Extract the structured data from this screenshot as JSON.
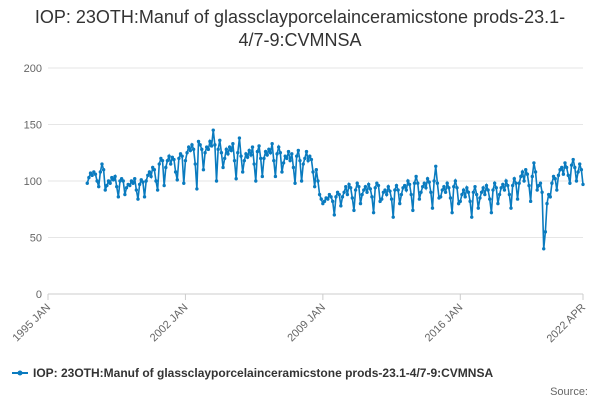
{
  "chart_data": {
    "type": "line",
    "title": "IOP: 23OTH:Manuf of glassclayporcelainceramicstone prods-23.1-4/7-9:CVMNSA",
    "source_label": "Source:",
    "xlim": [
      "1995-01",
      "2022-04"
    ],
    "xticks": [
      {
        "value": "1995-01",
        "label": "1995 JAN"
      },
      {
        "value": "2002-01",
        "label": "2002 JAN"
      },
      {
        "value": "2009-01",
        "label": "2009 JAN"
      },
      {
        "value": "2016-01",
        "label": "2016 JAN"
      },
      {
        "value": "2022-04",
        "label": "2022 APR"
      }
    ],
    "ylim": [
      0,
      200
    ],
    "yticks": [
      0,
      50,
      100,
      150,
      200
    ],
    "grid": true,
    "x": [
      "1997-01",
      "1997-02",
      "1997-03",
      "1997-04",
      "1997-05",
      "1997-06",
      "1997-07",
      "1997-08",
      "1997-09",
      "1997-10",
      "1997-11",
      "1997-12",
      "1998-01",
      "1998-02",
      "1998-03",
      "1998-04",
      "1998-05",
      "1998-06",
      "1998-07",
      "1998-08",
      "1998-09",
      "1998-10",
      "1998-11",
      "1998-12",
      "1999-01",
      "1999-02",
      "1999-03",
      "1999-04",
      "1999-05",
      "1999-06",
      "1999-07",
      "1999-08",
      "1999-09",
      "1999-10",
      "1999-11",
      "1999-12",
      "2000-01",
      "2000-02",
      "2000-03",
      "2000-04",
      "2000-05",
      "2000-06",
      "2000-07",
      "2000-08",
      "2000-09",
      "2000-10",
      "2000-11",
      "2000-12",
      "2001-01",
      "2001-02",
      "2001-03",
      "2001-04",
      "2001-05",
      "2001-06",
      "2001-07",
      "2001-08",
      "2001-09",
      "2001-10",
      "2001-11",
      "2001-12",
      "2002-01",
      "2002-02",
      "2002-03",
      "2002-04",
      "2002-05",
      "2002-06",
      "2002-07",
      "2002-08",
      "2002-09",
      "2002-10",
      "2002-11",
      "2002-12",
      "2003-01",
      "2003-02",
      "2003-03",
      "2003-04",
      "2003-05",
      "2003-06",
      "2003-07",
      "2003-08",
      "2003-09",
      "2003-10",
      "2003-11",
      "2003-12",
      "2004-01",
      "2004-02",
      "2004-03",
      "2004-04",
      "2004-05",
      "2004-06",
      "2004-07",
      "2004-08",
      "2004-09",
      "2004-10",
      "2004-11",
      "2004-12",
      "2005-01",
      "2005-02",
      "2005-03",
      "2005-04",
      "2005-05",
      "2005-06",
      "2005-07",
      "2005-08",
      "2005-09",
      "2005-10",
      "2005-11",
      "2005-12",
      "2006-01",
      "2006-02",
      "2006-03",
      "2006-04",
      "2006-05",
      "2006-06",
      "2006-07",
      "2006-08",
      "2006-09",
      "2006-10",
      "2006-11",
      "2006-12",
      "2007-01",
      "2007-02",
      "2007-03",
      "2007-04",
      "2007-05",
      "2007-06",
      "2007-07",
      "2007-08",
      "2007-09",
      "2007-10",
      "2007-11",
      "2007-12",
      "2008-01",
      "2008-02",
      "2008-03",
      "2008-04",
      "2008-05",
      "2008-06",
      "2008-07",
      "2008-08",
      "2008-09",
      "2008-10",
      "2008-11",
      "2008-12",
      "2009-01",
      "2009-02",
      "2009-03",
      "2009-04",
      "2009-05",
      "2009-06",
      "2009-07",
      "2009-08",
      "2009-09",
      "2009-10",
      "2009-11",
      "2009-12",
      "2010-01",
      "2010-02",
      "2010-03",
      "2010-04",
      "2010-05",
      "2010-06",
      "2010-07",
      "2010-08",
      "2010-09",
      "2010-10",
      "2010-11",
      "2010-12",
      "2011-01",
      "2011-02",
      "2011-03",
      "2011-04",
      "2011-05",
      "2011-06",
      "2011-07",
      "2011-08",
      "2011-09",
      "2011-10",
      "2011-11",
      "2011-12",
      "2012-01",
      "2012-02",
      "2012-03",
      "2012-04",
      "2012-05",
      "2012-06",
      "2012-07",
      "2012-08",
      "2012-09",
      "2012-10",
      "2012-11",
      "2012-12",
      "2013-01",
      "2013-02",
      "2013-03",
      "2013-04",
      "2013-05",
      "2013-06",
      "2013-07",
      "2013-08",
      "2013-09",
      "2013-10",
      "2013-11",
      "2013-12",
      "2014-01",
      "2014-02",
      "2014-03",
      "2014-04",
      "2014-05",
      "2014-06",
      "2014-07",
      "2014-08",
      "2014-09",
      "2014-10",
      "2014-11",
      "2014-12",
      "2015-01",
      "2015-02",
      "2015-03",
      "2015-04",
      "2015-05",
      "2015-06",
      "2015-07",
      "2015-08",
      "2015-09",
      "2015-10",
      "2015-11",
      "2015-12",
      "2016-01",
      "2016-02",
      "2016-03",
      "2016-04",
      "2016-05",
      "2016-06",
      "2016-07",
      "2016-08",
      "2016-09",
      "2016-10",
      "2016-11",
      "2016-12",
      "2017-01",
      "2017-02",
      "2017-03",
      "2017-04",
      "2017-05",
      "2017-06",
      "2017-07",
      "2017-08",
      "2017-09",
      "2017-10",
      "2017-11",
      "2017-12",
      "2018-01",
      "2018-02",
      "2018-03",
      "2018-04",
      "2018-05",
      "2018-06",
      "2018-07",
      "2018-08",
      "2018-09",
      "2018-10",
      "2018-11",
      "2018-12",
      "2019-01",
      "2019-02",
      "2019-03",
      "2019-04",
      "2019-05",
      "2019-06",
      "2019-07",
      "2019-08",
      "2019-09",
      "2019-10",
      "2019-11",
      "2019-12",
      "2020-01",
      "2020-02",
      "2020-03",
      "2020-04",
      "2020-05",
      "2020-06",
      "2020-07",
      "2020-08",
      "2020-09",
      "2020-10",
      "2020-11",
      "2020-12",
      "2021-01",
      "2021-02",
      "2021-03",
      "2021-04",
      "2021-05",
      "2021-06",
      "2021-07",
      "2021-08",
      "2021-09",
      "2021-10",
      "2021-11",
      "2021-12",
      "2022-01",
      "2022-02",
      "2022-03",
      "2022-04"
    ],
    "series": [
      {
        "name": "IOP: 23OTH:Manuf of glassclayporcelainceramicstone prods-23.1-4/7-9:CVMNSA",
        "color": "#0a7bbf",
        "values": [
          98,
          103,
          107,
          105,
          108,
          106,
          100,
          95,
          108,
          115,
          110,
          92,
          96,
          100,
          98,
          103,
          101,
          104,
          95,
          86,
          100,
          102,
          100,
          88,
          94,
          97,
          96,
          100,
          98,
          102,
          92,
          84,
          97,
          101,
          99,
          86,
          100,
          105,
          108,
          104,
          112,
          110,
          100,
          92,
          115,
          120,
          118,
          96,
          112,
          118,
          122,
          115,
          121,
          119,
          108,
          101,
          120,
          124,
          122,
          98,
          118,
          125,
          130,
          127,
          132,
          128,
          115,
          93,
          135,
          132,
          128,
          110,
          125,
          130,
          128,
          135,
          131,
          145,
          132,
          100,
          128,
          136,
          125,
          112,
          120,
          128,
          124,
          130,
          127,
          133,
          118,
          102,
          125,
          138,
          122,
          108,
          118,
          124,
          121,
          127,
          123,
          130,
          115,
          100,
          126,
          131,
          120,
          104,
          120,
          126,
          123,
          128,
          125,
          133,
          118,
          104,
          124,
          130,
          125,
          108,
          116,
          122,
          120,
          126,
          118,
          124,
          112,
          98,
          122,
          127,
          118,
          100,
          115,
          120,
          126,
          118,
          122,
          119,
          108,
          95,
          110,
          100,
          88,
          84,
          80,
          82,
          85,
          84,
          88,
          86,
          82,
          70,
          86,
          90,
          88,
          78,
          86,
          90,
          95,
          88,
          97,
          94,
          85,
          74,
          92,
          98,
          95,
          80,
          88,
          92,
          95,
          90,
          97,
          93,
          86,
          72,
          94,
          98,
          96,
          82,
          84,
          90,
          92,
          88,
          95,
          91,
          84,
          68,
          92,
          96,
          92,
          80,
          88,
          94,
          96,
          92,
          100,
          97,
          88,
          74,
          98,
          104,
          98,
          84,
          90,
          95,
          98,
          94,
          102,
          99,
          90,
          76,
          100,
          113,
          98,
          85,
          86,
          92,
          95,
          90,
          98,
          94,
          85,
          72,
          95,
          100,
          94,
          80,
          82,
          88,
          92,
          86,
          94,
          90,
          82,
          68,
          90,
          95,
          88,
          76,
          85,
          90,
          94,
          88,
          96,
          92,
          84,
          72,
          92,
          98,
          94,
          80,
          88,
          94,
          97,
          92,
          100,
          96,
          88,
          76,
          96,
          102,
          98,
          84,
          98,
          104,
          108,
          100,
          110,
          106,
          96,
          82,
          104,
          116,
          108,
          92,
          96,
          98,
          90,
          40,
          55,
          80,
          88,
          86,
          98,
          104,
          102,
          92,
          105,
          110,
          112,
          106,
          116,
          112,
          105,
          98,
          114,
          119,
          112,
          100,
          108,
          115,
          110,
          97
        ]
      }
    ]
  }
}
